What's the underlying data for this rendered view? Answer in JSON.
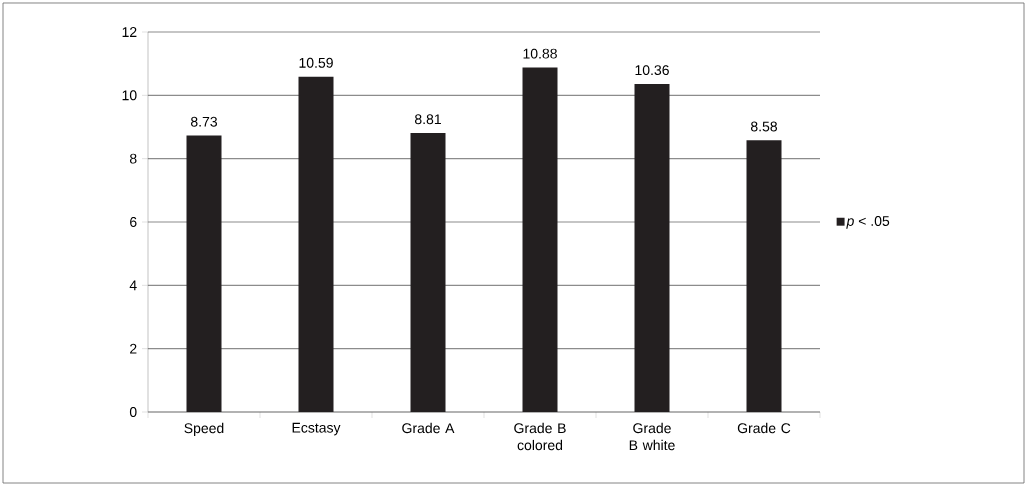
{
  "chart_data": {
    "type": "bar",
    "categories": [
      "Speed",
      "Ecstasy",
      "Grade A",
      "Grade B colored",
      "Grade B white",
      "Grade C"
    ],
    "series": [
      {
        "name": "*p* < .05",
        "color": "#231f20",
        "values": [
          8.73,
          10.59,
          8.81,
          10.88,
          10.36,
          8.58
        ]
      }
    ],
    "ylim": [
      0,
      12
    ],
    "yticks": [
      0,
      2,
      4,
      6,
      8,
      10,
      12
    ],
    "grid": "y",
    "legend": "right",
    "data_labels": true
  }
}
